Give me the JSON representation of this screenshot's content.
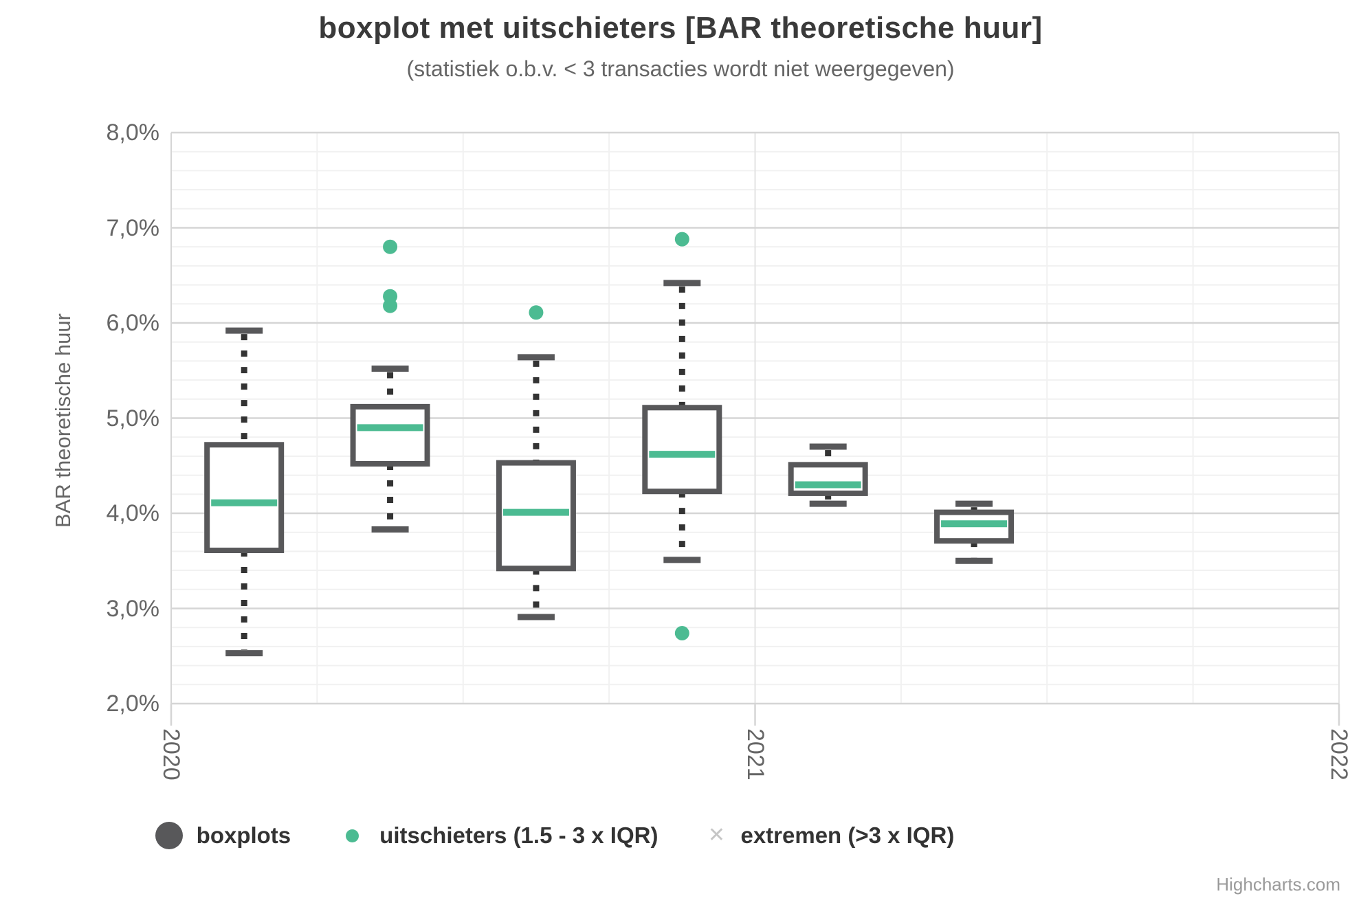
{
  "header": {
    "title": "boxplot met uitschieters [BAR theoretische huur]",
    "subtitle": "(statistiek o.b.v. < 3 transacties wordt niet weergegeven)"
  },
  "chart_data": {
    "type": "boxplot",
    "title": "boxplot met uitschieters [BAR theoretische huur]",
    "subtitle": "(statistiek o.b.v. < 3 transacties wordt niet weergegeven)",
    "xlabel": "",
    "ylabel": "BAR theoretische huur",
    "ylim": [
      2,
      8
    ],
    "y_major_step": 1,
    "y_minor_step": 0.2,
    "y_tick_labels": [
      "2,0%",
      "3,0%",
      "4,0%",
      "5,0%",
      "6,0%",
      "7,0%",
      "8,0%"
    ],
    "xlim": [
      2020,
      2022
    ],
    "x_tick_values": [
      2020,
      2021,
      2022
    ],
    "x_tick_labels": [
      "2020",
      "2021",
      "2022"
    ],
    "x_minor_step_years": 0.25,
    "grid": true,
    "legend_position": "bottom",
    "series": [
      {
        "x": 2020.125,
        "low": 2.53,
        "q1": 3.61,
        "median": 4.11,
        "q3": 4.72,
        "high": 5.92,
        "outliers": [],
        "extremes": []
      },
      {
        "x": 2020.375,
        "low": 3.83,
        "q1": 4.52,
        "median": 4.9,
        "q3": 5.12,
        "high": 5.52,
        "outliers": [
          6.18,
          6.28,
          6.8
        ],
        "extremes": []
      },
      {
        "x": 2020.625,
        "low": 2.91,
        "q1": 3.42,
        "median": 4.01,
        "q3": 4.53,
        "high": 5.64,
        "outliers": [
          6.11
        ],
        "extremes": []
      },
      {
        "x": 2020.875,
        "low": 3.51,
        "q1": 4.23,
        "median": 4.62,
        "q3": 5.11,
        "high": 6.42,
        "outliers": [
          2.74,
          6.88
        ],
        "extremes": []
      },
      {
        "x": 2021.125,
        "low": 4.1,
        "q1": 4.21,
        "median": 4.3,
        "q3": 4.51,
        "high": 4.7,
        "outliers": [],
        "extremes": []
      },
      {
        "x": 2021.375,
        "low": 3.5,
        "q1": 3.71,
        "median": 3.89,
        "q3": 4.01,
        "high": 4.1,
        "outliers": [],
        "extremes": []
      }
    ]
  },
  "legend": {
    "items": [
      {
        "label": "boxplots",
        "symbol": "circle-large",
        "color": "#58585A"
      },
      {
        "label": "uitschieters (1.5 - 3 x IQR)",
        "symbol": "dot",
        "color": "#4CBB92"
      },
      {
        "label": "extremen (>3 x IQR)",
        "symbol": "cross",
        "color": "#C6C6C6"
      }
    ]
  },
  "credits": {
    "label": "Highcharts.com"
  },
  "colors": {
    "accent_green": "#4CBB92",
    "box_border": "#58585A",
    "whisker_dash": "#333333",
    "grid_major": "#D5D5D5",
    "grid_minor": "#F1F1F1",
    "grid_major_vertical": "#E3E3E3",
    "axis_line": "#D5D5D5",
    "label_text": "#666666",
    "title_text": "#3A3A3A",
    "credits_text": "#9A9A9A"
  }
}
